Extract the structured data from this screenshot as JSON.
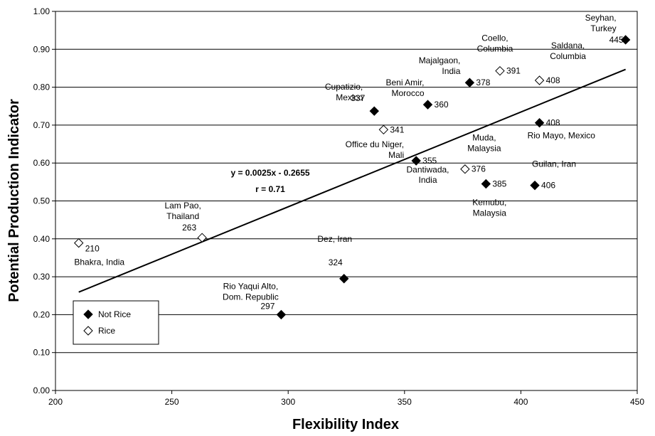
{
  "chart_data": {
    "type": "scatter",
    "title": "",
    "xlabel": "Flexibility Index",
    "ylabel": "Potential Production Indicator",
    "xlim": [
      200,
      450
    ],
    "ylim": [
      0,
      1
    ],
    "xticks": [
      "200",
      "250",
      "300",
      "350",
      "400",
      "450"
    ],
    "yticks": [
      "0.00",
      "0.10",
      "0.20",
      "0.30",
      "0.40",
      "0.50",
      "0.60",
      "0.70",
      "0.80",
      "0.90",
      "1.00"
    ],
    "grid": "horizontal",
    "legend_position": "bottom-left",
    "series": [
      {
        "name": "Not Rice",
        "marker": "filled-diamond",
        "color": "#000000",
        "points": [
          {
            "x": 445,
            "y": 0.925,
            "value_label": "445",
            "name_label": [
              "Seyhan,",
              "Turkey"
            ]
          },
          {
            "x": 378,
            "y": 0.812,
            "value_label": "378",
            "name_label": [
              "Majalgaon,",
              "India"
            ]
          },
          {
            "x": 408,
            "y": 0.706,
            "value_label": "408",
            "name_label": [
              "Rio Mayo, Mexico"
            ]
          },
          {
            "x": 360,
            "y": 0.754,
            "value_label": "360",
            "name_label": [
              "Beni Amir,",
              "Morocco"
            ]
          },
          {
            "x": 337,
            "y": 0.737,
            "value_label": "337",
            "name_label": [
              "Cupatizio,",
              "Mexico"
            ]
          },
          {
            "x": 355,
            "y": 0.606,
            "value_label": "355",
            "name_label": [
              "Office du Niger,",
              "Mali"
            ]
          },
          {
            "x": 385,
            "y": 0.545,
            "value_label": "385",
            "name_label": [
              "Kemubu,",
              "Malaysia"
            ]
          },
          {
            "x": 406,
            "y": 0.541,
            "value_label": "406",
            "name_label": [
              "Guilan, Iran"
            ]
          },
          {
            "x": 324,
            "y": 0.295,
            "value_label": "324",
            "name_label": [
              "Dez, Iran"
            ]
          },
          {
            "x": 297,
            "y": 0.2,
            "value_label": "297",
            "name_label": [
              "Rio Yaqui Alto,",
              "Dom. Republic"
            ]
          }
        ]
      },
      {
        "name": "Rice",
        "marker": "open-diamond",
        "color": "#000000",
        "points": [
          {
            "x": 391,
            "y": 0.843,
            "value_label": "391",
            "name_label": [
              "Coello,",
              "Columbia"
            ]
          },
          {
            "x": 408,
            "y": 0.818,
            "value_label": "408",
            "name_label": [
              "Saldana,",
              "Columbia"
            ]
          },
          {
            "x": 341,
            "y": 0.688,
            "value_label": "341",
            "name_label": []
          },
          {
            "x": 376,
            "y": 0.584,
            "value_label": "376",
            "name_label": [
              "Muda,",
              "Malaysia"
            ]
          },
          {
            "x": 263,
            "y": 0.403,
            "value_label": "263",
            "name_label": [
              "Lam Pao,",
              "Thailand"
            ]
          },
          {
            "x": 210,
            "y": 0.389,
            "value_label": "210",
            "name_label": [
              "Bhakra, India"
            ]
          }
        ]
      }
    ],
    "free_annotations": [
      {
        "text": "Dantiwada,",
        "x": 360,
        "y": 0.575
      },
      {
        "text": "India",
        "x": 360,
        "y": 0.548
      }
    ],
    "trendline": {
      "slope": 0.0025,
      "intercept": -0.2655,
      "x_range": [
        210,
        445
      ],
      "equation_text": "y = 0.0025x - 0.2655",
      "r_text": "r = 0.71"
    }
  }
}
